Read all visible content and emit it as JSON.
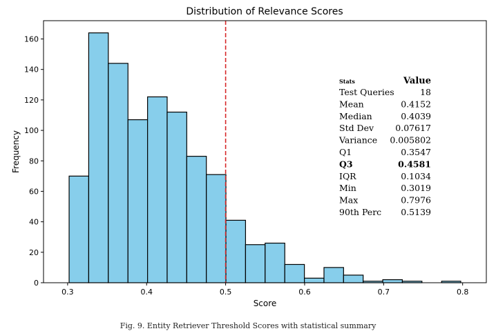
{
  "figure": {
    "caption": "Fig. 9.  Entity Retriever Threshold Scores with statistical summary"
  },
  "chart_data": {
    "type": "bar",
    "title": "Distribution of Relevance Scores",
    "xlabel": "Score",
    "ylabel": "Frequency",
    "bin_edges": [
      0.3019,
      0.3267,
      0.3515,
      0.3764,
      0.4012,
      0.426,
      0.4508,
      0.4756,
      0.5004,
      0.5252,
      0.55,
      0.5749,
      0.5997,
      0.6245,
      0.6493,
      0.6741,
      0.6989,
      0.7237,
      0.7485,
      0.7734,
      0.7976
    ],
    "values": [
      70,
      164,
      144,
      107,
      122,
      112,
      83,
      71,
      41,
      25,
      26,
      12,
      3,
      10,
      5,
      1,
      2,
      1,
      0,
      1
    ],
    "xlim": [
      0.2695,
      0.83
    ],
    "ylim": [
      0,
      172
    ],
    "xticks": [
      0.3,
      0.4,
      0.5,
      0.6,
      0.7,
      0.8
    ],
    "xtick_labels": [
      "0.3",
      "0.4",
      "0.5",
      "0.6",
      "0.7",
      "0.8"
    ],
    "yticks": [
      0,
      20,
      40,
      60,
      80,
      100,
      120,
      140,
      160
    ],
    "ytick_labels": [
      "0",
      "20",
      "40",
      "60",
      "80",
      "100",
      "120",
      "140",
      "160"
    ],
    "threshold": {
      "x": 0.5,
      "color": "#d62728",
      "style": "dashed"
    },
    "bar_color": "#87ceeb",
    "edge_color": "#000000",
    "grid": false,
    "stats_table": {
      "header_left": "Stats",
      "header_right": "Value",
      "rows": [
        {
          "label": "Test Queries",
          "value": "18",
          "bold": false
        },
        {
          "label": "Mean",
          "value": "0.4152",
          "bold": false
        },
        {
          "label": "Median",
          "value": "0.4039",
          "bold": false
        },
        {
          "label": "Std Dev",
          "value": "0.07617",
          "bold": false
        },
        {
          "label": "Variance",
          "value": "0.005802",
          "bold": false
        },
        {
          "label": "Q1",
          "value": "0.3547",
          "bold": false
        },
        {
          "label": "Q3",
          "value": "0.4581",
          "bold": true
        },
        {
          "label": "IQR",
          "value": "0.1034",
          "bold": false
        },
        {
          "label": "Min",
          "value": "0.3019",
          "bold": false
        },
        {
          "label": "Max",
          "value": "0.7976",
          "bold": false
        },
        {
          "label": "90th Perc",
          "value": "0.5139",
          "bold": false
        }
      ]
    }
  }
}
